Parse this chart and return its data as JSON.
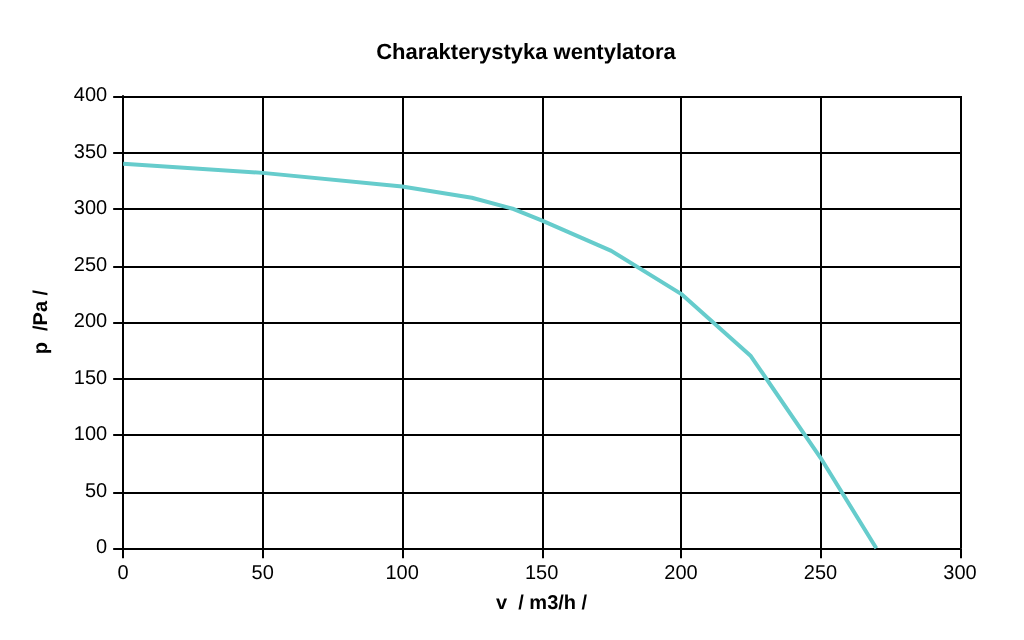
{
  "chart_data": {
    "type": "line",
    "title": "Charakterystyka wentylatora",
    "xlabel": "v  / m3/h /",
    "ylabel": "p  /Pa /",
    "x": [
      0,
      50,
      100,
      125,
      140,
      150,
      175,
      200,
      225,
      250,
      270
    ],
    "series": [
      {
        "color": "#66cccc",
        "values": [
          340,
          332,
          320,
          310,
          300,
          290,
          263,
          225,
          170,
          80,
          0
        ]
      }
    ],
    "xlim": [
      0,
      300
    ],
    "xticks": [
      0,
      50,
      100,
      150,
      200,
      250,
      300
    ],
    "ylim": [
      0,
      400
    ],
    "yticks": [
      0,
      50,
      100,
      150,
      200,
      250,
      300,
      350,
      400
    ],
    "grid": true,
    "marker": "none",
    "line_style": "solid"
  }
}
